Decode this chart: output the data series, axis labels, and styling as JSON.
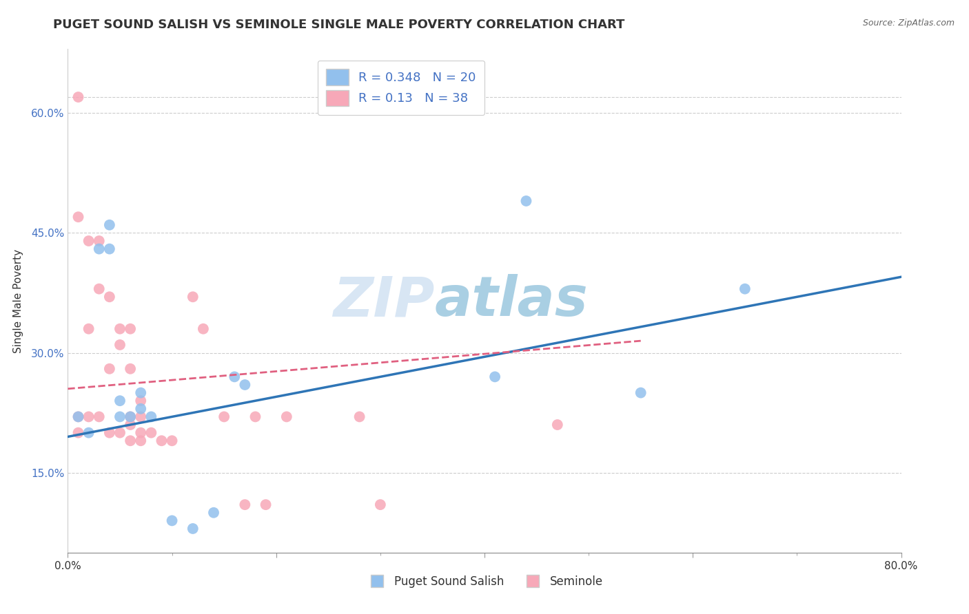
{
  "title": "PUGET SOUND SALISH VS SEMINOLE SINGLE MALE POVERTY CORRELATION CHART",
  "source": "Source: ZipAtlas.com",
  "ylabel": "Single Male Poverty",
  "xlim": [
    0.0,
    0.8
  ],
  "ylim": [
    0.05,
    0.68
  ],
  "xticks": [
    0.0,
    0.2,
    0.4,
    0.6,
    0.8
  ],
  "xtick_labels": [
    "0.0%",
    "",
    "",
    "",
    "80.0%"
  ],
  "yticks": [
    0.15,
    0.3,
    0.45,
    0.6
  ],
  "ytick_labels": [
    "15.0%",
    "30.0%",
    "45.0%",
    "60.0%"
  ],
  "blue_R": 0.348,
  "blue_N": 20,
  "pink_R": 0.13,
  "pink_N": 38,
  "blue_color": "#92C0ED",
  "pink_color": "#F7A8B8",
  "blue_line_color": "#2E75B6",
  "pink_line_color": "#E06080",
  "legend_label_blue": "Puget Sound Salish",
  "legend_label_pink": "Seminole",
  "watermark_zip": "ZIP",
  "watermark_atlas": "atlas",
  "watermark_color_zip": "#B8D0E8",
  "watermark_color_atlas": "#7DB8E0",
  "background_color": "#FFFFFF",
  "grid_color": "#CCCCCC",
  "title_fontsize": 13,
  "tick_fontsize": 11,
  "label_fontsize": 11,
  "blue_x": [
    0.01,
    0.02,
    0.03,
    0.04,
    0.04,
    0.05,
    0.05,
    0.06,
    0.07,
    0.07,
    0.08,
    0.1,
    0.12,
    0.14,
    0.16,
    0.17,
    0.41,
    0.44,
    0.55,
    0.65
  ],
  "blue_y": [
    0.22,
    0.2,
    0.43,
    0.43,
    0.46,
    0.24,
    0.22,
    0.22,
    0.25,
    0.23,
    0.22,
    0.09,
    0.08,
    0.1,
    0.27,
    0.26,
    0.27,
    0.49,
    0.25,
    0.38
  ],
  "pink_x": [
    0.01,
    0.01,
    0.01,
    0.01,
    0.02,
    0.02,
    0.02,
    0.03,
    0.03,
    0.03,
    0.04,
    0.04,
    0.04,
    0.05,
    0.05,
    0.05,
    0.06,
    0.06,
    0.06,
    0.06,
    0.06,
    0.07,
    0.07,
    0.07,
    0.07,
    0.08,
    0.09,
    0.1,
    0.12,
    0.13,
    0.15,
    0.17,
    0.18,
    0.19,
    0.21,
    0.28,
    0.3,
    0.47
  ],
  "pink_y": [
    0.62,
    0.47,
    0.22,
    0.2,
    0.44,
    0.33,
    0.22,
    0.44,
    0.38,
    0.22,
    0.37,
    0.28,
    0.2,
    0.33,
    0.31,
    0.2,
    0.33,
    0.28,
    0.22,
    0.21,
    0.19,
    0.24,
    0.22,
    0.2,
    0.19,
    0.2,
    0.19,
    0.19,
    0.37,
    0.33,
    0.22,
    0.11,
    0.22,
    0.11,
    0.22,
    0.22,
    0.11,
    0.21
  ],
  "blue_trend_x": [
    0.0,
    0.8
  ],
  "blue_trend_y": [
    0.195,
    0.395
  ],
  "pink_trend_x": [
    0.0,
    0.55
  ],
  "pink_trend_y": [
    0.255,
    0.315
  ]
}
